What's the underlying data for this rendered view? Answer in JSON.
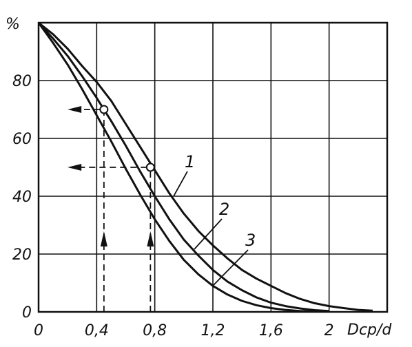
{
  "chart_data": {
    "type": "line",
    "title": "",
    "ylabel": "%",
    "xlabel": "Dcp/d",
    "xlim": [
      0,
      2.4
    ],
    "ylim": [
      0,
      100
    ],
    "xticks": [
      "0",
      "0,4",
      "0,8",
      "1,2",
      "1,6",
      "2"
    ],
    "yticks": [
      "0",
      "20",
      "40",
      "60",
      "80"
    ],
    "grid": true,
    "series": [
      {
        "name": "1",
        "x": [
          0,
          0.1,
          0.2,
          0.3,
          0.4,
          0.5,
          0.6,
          0.7,
          0.8,
          0.9,
          1.0,
          1.1,
          1.2,
          1.3,
          1.4,
          1.5,
          1.6,
          1.7,
          1.8,
          1.9,
          2.0,
          2.1,
          2.2,
          2.3
        ],
        "values": [
          100,
          96,
          91,
          85,
          79.5,
          73,
          65,
          57,
          49,
          41,
          34,
          28,
          23,
          18.5,
          14.5,
          11.5,
          9,
          6.5,
          4.5,
          3,
          2,
          1.3,
          0.7,
          0.4
        ]
      },
      {
        "name": "2",
        "x": [
          0,
          0.1,
          0.2,
          0.3,
          0.4,
          0.5,
          0.6,
          0.7,
          0.8,
          0.9,
          1.0,
          1.1,
          1.2,
          1.3,
          1.4,
          1.5,
          1.6,
          1.7,
          1.8,
          1.9,
          2.0
        ],
        "values": [
          100,
          94.5,
          88.5,
          81.5,
          74,
          66,
          57.5,
          48.5,
          40,
          32,
          25,
          19.5,
          14.5,
          10.5,
          7.5,
          5,
          3.2,
          2,
          1.2,
          0.6,
          0.3
        ]
      },
      {
        "name": "3",
        "x": [
          0,
          0.1,
          0.2,
          0.3,
          0.4,
          0.5,
          0.6,
          0.7,
          0.8,
          0.9,
          1.0,
          1.1,
          1.2,
          1.3,
          1.4,
          1.5,
          1.6,
          1.7,
          1.8,
          1.9
        ],
        "values": [
          100,
          93,
          85.5,
          77,
          68,
          59,
          49.5,
          40.5,
          32,
          24.5,
          18,
          13,
          9,
          6,
          3.8,
          2.3,
          1.3,
          0.7,
          0.3,
          0.1
        ]
      }
    ],
    "annotations": [
      {
        "x": 0.45,
        "y": 70,
        "arrow_up_from": 0,
        "arrow_left_to": 0.2
      },
      {
        "x": 0.77,
        "y": 50,
        "arrow_up_from": 0,
        "arrow_left_to": 0.2
      }
    ]
  }
}
